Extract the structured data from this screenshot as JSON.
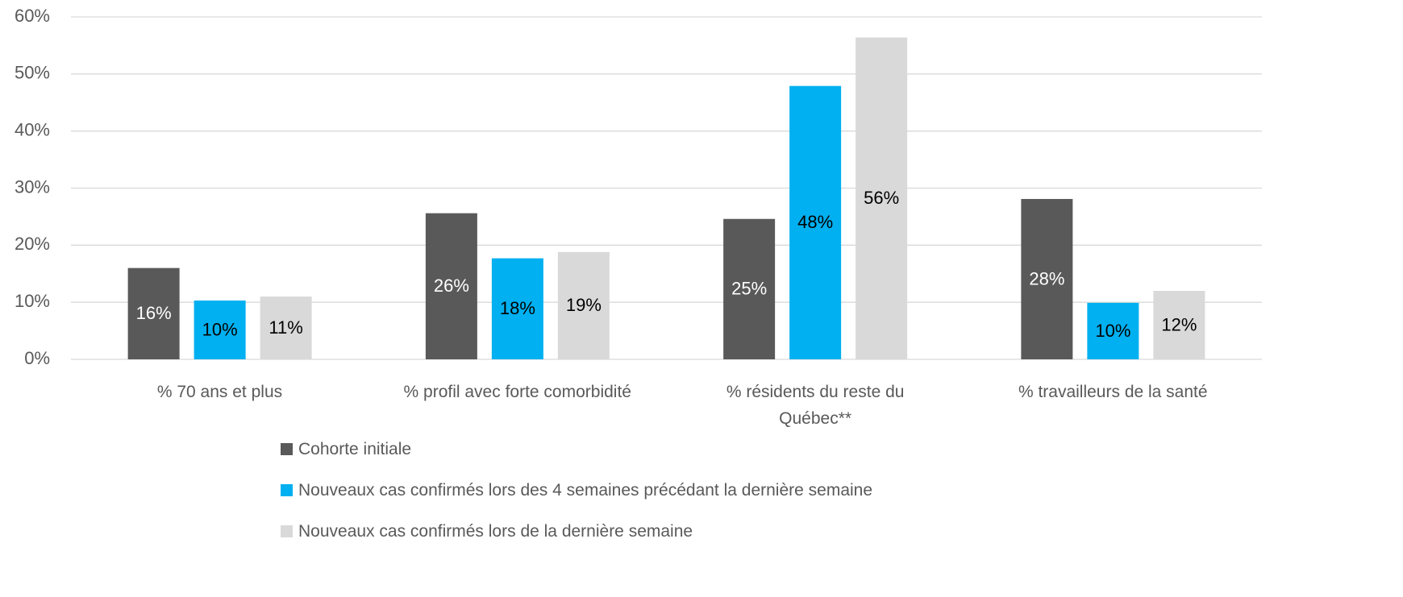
{
  "chart_data": {
    "type": "bar",
    "categories": [
      "% 70 ans et plus",
      "% profil avec forte comorbidité",
      "% résidents du reste du Québec**",
      "% travailleurs de la santé"
    ],
    "series": [
      {
        "name": "Cohorte initiale",
        "color": "#595959",
        "label_color": "#ffffff",
        "values": [
          16,
          25.6,
          24.6,
          28.1
        ],
        "value_labels": [
          "16%",
          "26%",
          "25%",
          "28%"
        ]
      },
      {
        "name": "Nouveaux cas confirmés lors des 4 semaines précédant la dernière semaine",
        "color": "#00b0f0",
        "label_color": "#000000",
        "values": [
          10.3,
          17.7,
          47.9,
          9.9
        ],
        "value_labels": [
          "10%",
          "18%",
          "48%",
          "10%"
        ]
      },
      {
        "name": "Nouveaux cas confirmés lors de la dernière semaine",
        "color": "#d9d9d9",
        "label_color": "#000000",
        "values": [
          11,
          18.8,
          56.4,
          12
        ],
        "value_labels": [
          "11%",
          "19%",
          "56%",
          "12%"
        ]
      }
    ],
    "ylim": [
      0,
      60
    ],
    "yticks": [
      {
        "value": 0,
        "label": "0%"
      },
      {
        "value": 10,
        "label": "10%"
      },
      {
        "value": 20,
        "label": "20%"
      },
      {
        "value": 30,
        "label": "30%"
      },
      {
        "value": 40,
        "label": "40%"
      },
      {
        "value": 50,
        "label": "50%"
      },
      {
        "value": 60,
        "label": "60%"
      }
    ],
    "grid": true,
    "legend": "bottom"
  }
}
